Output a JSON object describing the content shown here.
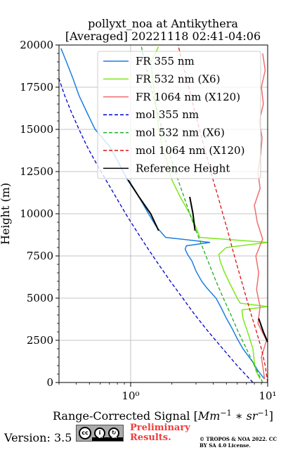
{
  "chart_data": {
    "type": "line",
    "title": "pollyxt_noa at Antikythera",
    "subtitle": "[Averaged] 20221118 02:41-04:06",
    "xlabel": "Range-Corrected Signal [Mm⁻¹ * sr⁻¹]",
    "ylabel": "Height (m)",
    "xscale": "log",
    "xlim": [
      0.3,
      10
    ],
    "ylim": [
      0,
      20000
    ],
    "x_ticks": [
      {
        "value": 1,
        "label": "10⁰"
      },
      {
        "value": 10,
        "label": "10¹"
      }
    ],
    "y_ticks": [
      0,
      2500,
      5000,
      7500,
      10000,
      12500,
      15000,
      17500,
      20000
    ],
    "y_tick_labels": [
      "0",
      "2500",
      "5000",
      "7500",
      "10000",
      "12500",
      "15000",
      "17500",
      "20000"
    ],
    "grid": true,
    "legend_position": "top-right",
    "series": [
      {
        "name": "FR 355 nm",
        "color": "#1c7fe0",
        "style": "solid",
        "y": [
          200,
          700,
          1200,
          2000,
          2600,
          3200,
          3800,
          4400,
          5000,
          5600,
          6000,
          6600,
          7200,
          7600,
          7900,
          8100,
          8300,
          8600,
          9200,
          10000,
          11000,
          12000,
          13000,
          14000,
          15000,
          16000,
          17000,
          18000,
          19000,
          19800
        ],
        "x": [
          9.5,
          8.5,
          7.8,
          6.6,
          6.0,
          5.5,
          5.0,
          4.6,
          4.2,
          3.6,
          3.3,
          3.0,
          2.8,
          2.6,
          2.5,
          2.55,
          3.8,
          1.8,
          1.55,
          1.35,
          1.15,
          0.95,
          0.82,
          0.7,
          0.55,
          0.48,
          0.42,
          0.38,
          0.34,
          0.31
        ]
      },
      {
        "name": "FR 532 nm (X6)",
        "color": "#7ee81c",
        "style": "solid",
        "y": [
          200,
          700,
          1200,
          2000,
          2600,
          3200,
          3800,
          4300,
          4500,
          4700,
          5000,
          5600,
          6000,
          6600,
          7200,
          7600,
          8000,
          8300,
          8600,
          9200,
          10000,
          11000,
          12000,
          13000,
          14000,
          15000,
          16000,
          17000,
          18000,
          19000,
          19900
        ],
        "x": [
          8.8,
          8.2,
          8.0,
          7.8,
          7.4,
          7.0,
          6.6,
          6.5,
          10,
          6.3,
          6.0,
          5.5,
          5.2,
          4.8,
          4.5,
          4.4,
          5.0,
          10,
          3.2,
          3.0,
          2.7,
          2.3,
          2.0,
          1.85,
          1.7,
          1.6,
          1.55,
          1.5,
          1.45,
          1.4,
          1.6
        ]
      },
      {
        "name": "FR 1064 nm (X120)",
        "color": "#f26c6c",
        "style": "solid",
        "y": [
          200,
          1500,
          2500,
          3500,
          4500,
          5500,
          6500,
          7500,
          8500,
          9500,
          10500,
          11500,
          12500,
          13500,
          14500,
          15500,
          16500,
          17500,
          18500,
          19500
        ],
        "x": [
          9.5,
          9.0,
          9.8,
          8.5,
          8.8,
          8.3,
          8.6,
          8.2,
          9.2,
          8.4,
          8.0,
          8.8,
          8.5,
          8.9,
          9.1,
          8.7,
          9.3,
          9.0,
          9.6,
          9.2
        ]
      },
      {
        "name": "mol 355 nm",
        "color": "#0000cc",
        "style": "dashed",
        "y": [
          0,
          1000,
          2000,
          3000,
          4000,
          5000,
          6000,
          7000,
          8000,
          9000,
          10000,
          11000,
          12000,
          13000,
          14000,
          15000,
          16000,
          17000,
          18000
        ],
        "x": [
          7.8,
          6.0,
          4.7,
          3.7,
          2.95,
          2.4,
          1.95,
          1.6,
          1.32,
          1.1,
          0.92,
          0.78,
          0.66,
          0.56,
          0.48,
          0.42,
          0.37,
          0.33,
          0.3
        ]
      },
      {
        "name": "mol 532 nm (X6)",
        "color": "#22aa22",
        "style": "dashed",
        "y": [
          0,
          1000,
          2000,
          3000,
          4000,
          5000,
          6000,
          7000,
          8000,
          9000,
          10000,
          11000,
          12000,
          13000,
          14000,
          15000,
          16000,
          17000,
          18000,
          19000,
          20000
        ],
        "x": [
          9.2,
          8.0,
          7.0,
          6.1,
          5.4,
          4.75,
          4.2,
          3.75,
          3.35,
          3.0,
          2.7,
          2.45,
          2.22,
          2.02,
          1.85,
          1.7,
          1.57,
          1.46,
          1.36,
          1.27,
          1.19
        ]
      },
      {
        "name": "mol 1064 nm (X120)",
        "color": "#dd1111",
        "style": "dashed",
        "y": [
          0,
          1000,
          2000,
          3000,
          4000,
          5000,
          6000,
          7000,
          8000,
          9000,
          10000,
          11000,
          12000,
          13000,
          14000,
          15000,
          16000,
          17000,
          18000,
          19000,
          20000
        ],
        "x": [
          10,
          9.6,
          9.0,
          8.3,
          7.6,
          7.0,
          6.45,
          5.95,
          5.5,
          5.1,
          4.7,
          4.35,
          4.0,
          3.7,
          3.43,
          3.18,
          2.95,
          2.75,
          2.56,
          2.38,
          2.22
        ]
      },
      {
        "name": "Reference Height",
        "color": "#000000",
        "style": "solid",
        "segments": [
          {
            "y": [
              9000,
              10000,
              11000,
              12000
            ],
            "x": [
              1.6,
              1.4,
              1.15,
              0.96
            ]
          },
          {
            "y": [
              9000,
              10000,
              11000
            ],
            "x": [
              2.95,
              2.85,
              2.7
            ]
          },
          {
            "y": [
              2400,
              3000,
              3800
            ],
            "x": [
              10,
              9.3,
              8.6
            ]
          }
        ]
      }
    ]
  },
  "footer": {
    "version": "Version: 3.5",
    "cc_label_main": "cc",
    "cc_label_by": "i",
    "cc_label_sa": "↻",
    "cc_strip_by": "BY",
    "cc_strip_sa": "SA",
    "preliminary": "Preliminary Results.",
    "copyright": "© TROPOS & NOA 2022. CC BY SA 4.0 License."
  }
}
